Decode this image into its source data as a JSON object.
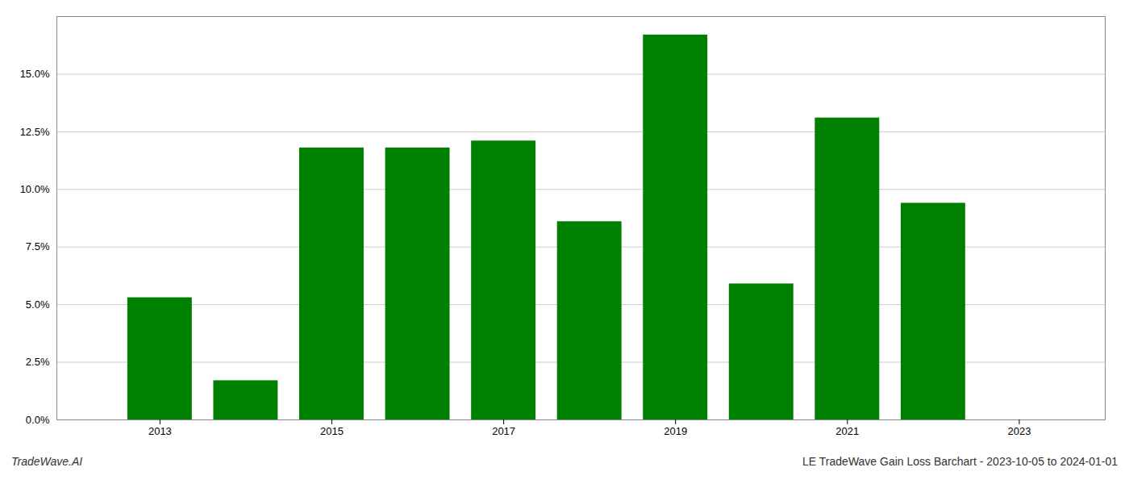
{
  "chart_data": {
    "type": "bar",
    "x": [
      2013,
      2014,
      2015,
      2016,
      2017,
      2018,
      2019,
      2020,
      2021,
      2022
    ],
    "values": [
      0.053,
      0.017,
      0.118,
      0.118,
      0.121,
      0.086,
      0.167,
      0.059,
      0.131,
      0.094
    ],
    "color": "#008000",
    "xlim": [
      2011.8,
      2024.0
    ],
    "xticks": [
      2013,
      2015,
      2017,
      2019,
      2021,
      2023
    ],
    "ylim": [
      0,
      0.175
    ],
    "yticks": [
      {
        "value": 0.0,
        "label": "0.0%"
      },
      {
        "value": 0.025,
        "label": "2.5%"
      },
      {
        "value": 0.05,
        "label": "5.0%"
      },
      {
        "value": 0.075,
        "label": "7.5%"
      },
      {
        "value": 0.1,
        "label": "10.0%"
      },
      {
        "value": 0.125,
        "label": "12.5%"
      },
      {
        "value": 0.15,
        "label": "15.0%"
      }
    ],
    "grid": true,
    "annotations": [
      "TradeWave.AI",
      "LE TradeWave Gain Loss Barchart - 2023-10-05 to 2024-01-01"
    ]
  }
}
